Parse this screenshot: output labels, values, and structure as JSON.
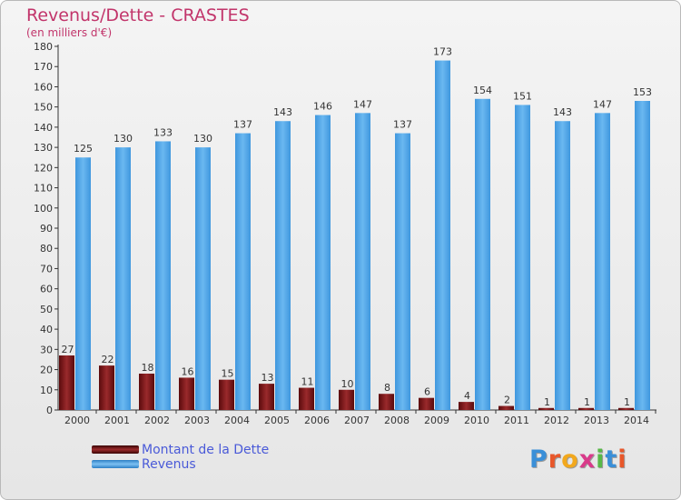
{
  "title": "Revenus/Dette - CRASTES",
  "subtitle": "(en milliers d'€)",
  "logo_text": "Proxiti",
  "colors": {
    "title": "#c2356b",
    "dette": "#7a1214",
    "revenus": "#4aa3e6",
    "legend_text": "#4a5ad8"
  },
  "chart_data": {
    "type": "bar",
    "title": "Revenus/Dette - CRASTES",
    "subtitle": "(en milliers d'€)",
    "categories": [
      "2000",
      "2001",
      "2002",
      "2003",
      "2004",
      "2005",
      "2006",
      "2007",
      "2008",
      "2009",
      "2010",
      "2011",
      "2012",
      "2013",
      "2014"
    ],
    "series": [
      {
        "name": "Montant de la Dette",
        "values": [
          27,
          22,
          18,
          16,
          15,
          13,
          11,
          10,
          8,
          6,
          4,
          2,
          1,
          1,
          1
        ]
      },
      {
        "name": "Revenus",
        "values": [
          125,
          130,
          133,
          130,
          137,
          143,
          146,
          147,
          137,
          173,
          154,
          151,
          143,
          147,
          153
        ]
      }
    ],
    "ylim": [
      0,
      180
    ],
    "yticks": [
      0,
      10,
      20,
      30,
      40,
      50,
      60,
      70,
      80,
      90,
      100,
      110,
      120,
      130,
      140,
      150,
      160,
      170,
      180
    ],
    "grid": false,
    "legend": "bottom-left"
  }
}
